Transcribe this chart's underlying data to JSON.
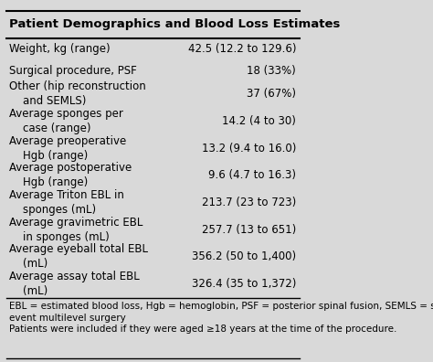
{
  "title": "Patient Demographics and Blood Loss Estimates",
  "rows": [
    [
      "Weight, kg (range)",
      "42.5 (12.2 to 129.6)"
    ],
    [
      "Surgical procedure, PSF",
      "18 (33%)"
    ],
    [
      "Other (hip reconstruction\n    and SEMLS)",
      "37 (67%)"
    ],
    [
      "Average sponges per\n    case (range)",
      "14.2 (4 to 30)"
    ],
    [
      "Average preoperative\n    Hgb (range)",
      "13.2 (9.4 to 16.0)"
    ],
    [
      "Average postoperative\n    Hgb (range)",
      "9.6 (4.7 to 16.3)"
    ],
    [
      "Average Triton EBL in\n    sponges (mL)",
      "213.7 (23 to 723)"
    ],
    [
      "Average gravimetric EBL\n    in sponges (mL)",
      "257.7 (13 to 651)"
    ],
    [
      "Average eyeball total EBL\n    (mL)",
      "356.2 (50 to 1,400)"
    ],
    [
      "Average assay total EBL\n    (mL)",
      "326.4 (35 to 1,372)"
    ]
  ],
  "footnote1": "EBL = estimated blood loss, Hgb = hemoglobin, PSF = posterior spinal fusion, SEMLS = single-\nevent multilevel surgery",
  "footnote2": "Patients were included if they were aged ≥18 years at the time of the procedure.",
  "bg_color": "#d9d9d9",
  "text_color": "#000000",
  "font_size": 8.5,
  "title_font_size": 9.5
}
